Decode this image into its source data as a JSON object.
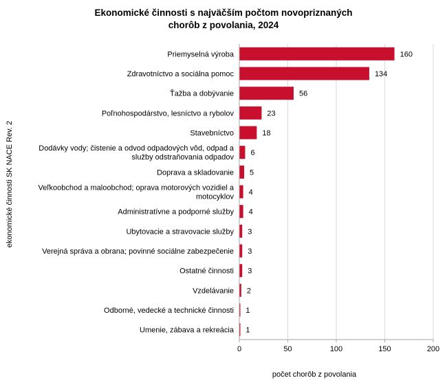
{
  "chart_data": {
    "type": "bar",
    "orientation": "horizontal",
    "title_line1": "Ekonomické činnosti s najväčším počtom novopriznaných",
    "title_line2": "chorôb z povolania, 2024",
    "xlabel": "počet chorôb z povolania",
    "ylabel": "ekonomické činnosti SK NACE Rev. 2",
    "xlim": [
      0,
      200
    ],
    "xticks": [
      "0",
      "50",
      "100",
      "150",
      "200"
    ],
    "grid": true,
    "legend": "none",
    "bar_color": "#c8102e",
    "categories": [
      [
        "Priemyselná výroba"
      ],
      [
        "Zdravotníctvo a sociálna pomoc"
      ],
      [
        "Ťažba a dobývanie"
      ],
      [
        "Poľnohospodárstvo, lesníctvo a rybolov"
      ],
      [
        "Stavebníctvo"
      ],
      [
        "Dodávky vody; čistenie a odvod odpadových vôd, odpad a",
        "služby odstraňovania odpadov"
      ],
      [
        "Doprava a skladovanie"
      ],
      [
        "Veľkoobchod a maloobchod; oprava motorových vozidiel a",
        "motocyklov"
      ],
      [
        "Administratívne a podporné služby"
      ],
      [
        "Ubytovacie a stravovacie služby"
      ],
      [
        "Verejná správa a obrana; povinné sociálne zabezpečenie"
      ],
      [
        "Ostatné činnosti"
      ],
      [
        "Vzdelávanie"
      ],
      [
        "Odborné, vedecké a technické činnosti"
      ],
      [
        "Umenie, zábava a rekreácia"
      ]
    ],
    "values": [
      160,
      134,
      56,
      23,
      18,
      6,
      5,
      4,
      4,
      3,
      3,
      3,
      2,
      1,
      1
    ]
  }
}
